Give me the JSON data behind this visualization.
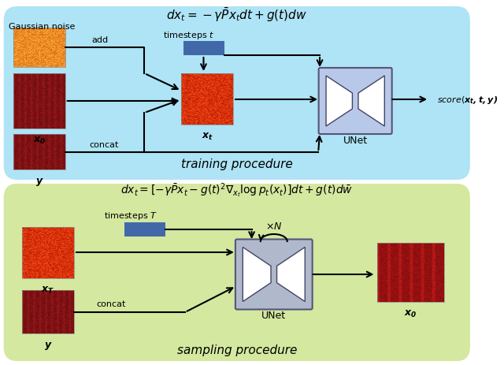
{
  "training_bg_color": "#AEE4F5",
  "sampling_bg_color": "#D4E8A0",
  "training_formula": "dx_t = -\\gamma\\bar{P}x_t dt + g(t)dw",
  "sampling_formula": "dx_t = [-\\gamma\\bar{P}x_t - g(t)^2 \\nabla_{x_t} \\log p_t(x_t)]dt + g(t)d\\bar{w}",
  "training_label": "training procedure",
  "sampling_label": "sampling procedure",
  "arrow_color": "#000000",
  "unet_bg": "#B0C4DE",
  "unet_inner": "#FFFFFF",
  "timestep_color": "#4169AA",
  "spectrogram_colors": {
    "gaussian": [
      "#F4A460",
      "#E8881A",
      "#C05800"
    ],
    "noisy": [
      "#CC3311",
      "#8B0000",
      "#FF4500"
    ],
    "clean": [
      "#9B2366",
      "#6B0F3A",
      "#CC3366"
    ],
    "output": [
      "#9B2366",
      "#6B0F3A",
      "#CC3366"
    ]
  }
}
